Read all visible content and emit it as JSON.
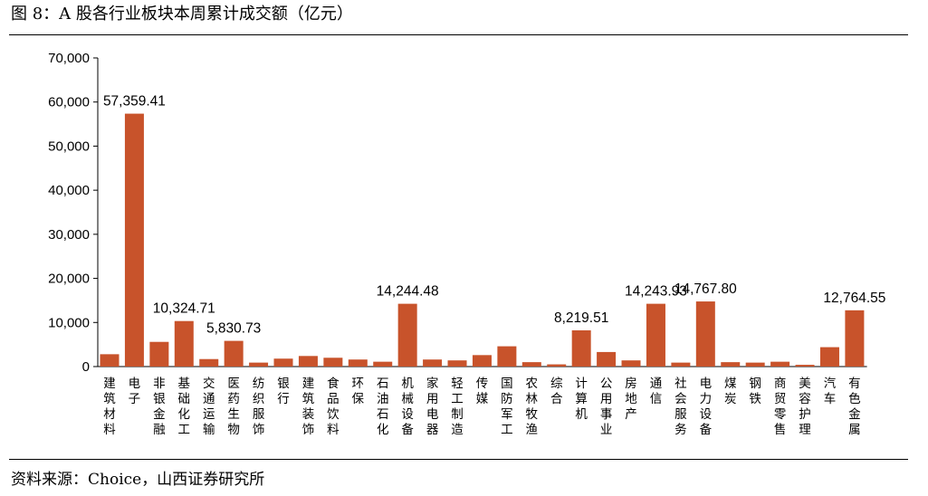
{
  "figure": {
    "title": "图 8：A 股各行业板块本周累计成交额（亿元）",
    "source": "资料来源：Choice，山西证券研究所"
  },
  "chart_data": {
    "type": "bar",
    "ylim": [
      0,
      70000
    ],
    "yticks": [
      "0",
      "10,000",
      "20,000",
      "30,000",
      "40,000",
      "50,000",
      "60,000",
      "70,000"
    ],
    "ytick_values": [
      0,
      10000,
      20000,
      30000,
      40000,
      50000,
      60000,
      70000
    ],
    "grid": false,
    "legend": "none",
    "bar_color": "#C8532B",
    "categories": [
      "建筑材料",
      "电子",
      "非银金融",
      "基础化工",
      "交通运输",
      "医药生物",
      "纺织服饰",
      "银行",
      "建筑装饰",
      "食品饮料",
      "环保",
      "石油石化",
      "机械设备",
      "家用电器",
      "轻工制造",
      "传媒",
      "国防军工",
      "农林牧渔",
      "综合",
      "计算机",
      "公用事业",
      "房地产",
      "通信",
      "社会服务",
      "电力设备",
      "煤炭",
      "钢铁",
      "商贸零售",
      "美容护理",
      "汽车",
      "有色金属"
    ],
    "values": [
      2800,
      57359.41,
      5600,
      10324.71,
      1700,
      5830.73,
      900,
      1800,
      2400,
      2000,
      1600,
      1100,
      14244.48,
      1600,
      1400,
      2600,
      4600,
      1000,
      500,
      8219.51,
      3300,
      1400,
      14243.93,
      900,
      14767.8,
      1000,
      900,
      1100,
      400,
      4400,
      12764.55
    ],
    "data_labels": [
      null,
      "57,359.41",
      null,
      "10,324.71",
      null,
      "5,830.73",
      null,
      null,
      null,
      null,
      null,
      null,
      "14,244.48",
      null,
      null,
      null,
      null,
      null,
      null,
      "8,219.51",
      null,
      null,
      "14,243.93",
      null,
      "14,767.80",
      null,
      null,
      null,
      null,
      null,
      "12,764.55"
    ]
  }
}
